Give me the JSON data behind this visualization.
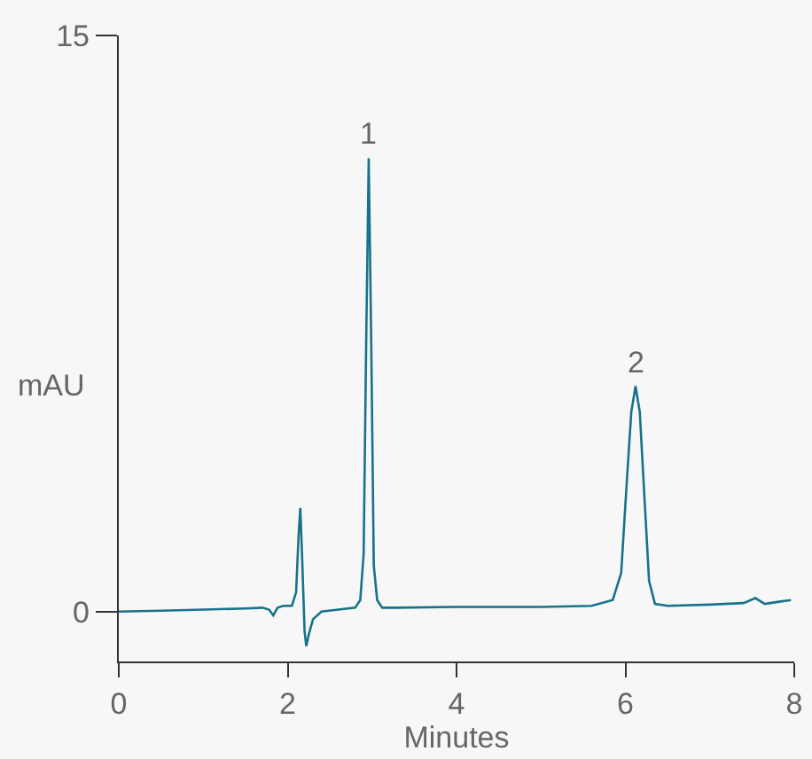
{
  "chart_data": {
    "type": "line",
    "xlabel": "Minutes",
    "ylabel": "mAU",
    "xlim": [
      0,
      8
    ],
    "ylim": [
      -1.3,
      15
    ],
    "xticks": [
      0,
      2,
      4,
      6,
      8
    ],
    "yticks": [
      0,
      15
    ],
    "grid": false,
    "marker": "none",
    "line_style": "solid",
    "series": [
      {
        "color": "#17728a",
        "x": [
          0,
          0.5,
          1,
          1.5,
          1.7,
          1.78,
          1.83,
          1.88,
          1.95,
          2.05,
          2.1,
          2.13,
          2.15,
          2.17,
          2.2,
          2.22,
          2.25,
          2.3,
          2.4,
          2.6,
          2.8,
          2.86,
          2.9,
          2.93,
          2.96,
          2.99,
          3.02,
          3.06,
          3.12,
          3.3,
          4,
          5,
          5.6,
          5.85,
          5.95,
          6.02,
          6.07,
          6.12,
          6.17,
          6.22,
          6.28,
          6.35,
          6.5,
          7,
          7.4,
          7.54,
          7.65,
          7.8,
          7.96
        ],
        "values": [
          0,
          0.02,
          0.05,
          0.08,
          0.1,
          0.05,
          -0.1,
          0.1,
          0.15,
          0.15,
          0.5,
          2.0,
          2.7,
          1.5,
          -0.5,
          -0.9,
          -0.6,
          -0.2,
          0,
          0.05,
          0.1,
          0.3,
          1.5,
          7,
          11.8,
          7,
          1.2,
          0.3,
          0.1,
          0.1,
          0.12,
          0.12,
          0.15,
          0.3,
          1,
          3.5,
          5.2,
          5.87,
          5.2,
          3.2,
          0.8,
          0.2,
          0.15,
          0.18,
          0.22,
          0.35,
          0.2,
          0.25,
          0.3
        ]
      }
    ],
    "annotations": [
      {
        "text": "1",
        "x": 2.96,
        "y": 11.8
      },
      {
        "text": "2",
        "x": 6.12,
        "y": 5.87
      }
    ]
  }
}
